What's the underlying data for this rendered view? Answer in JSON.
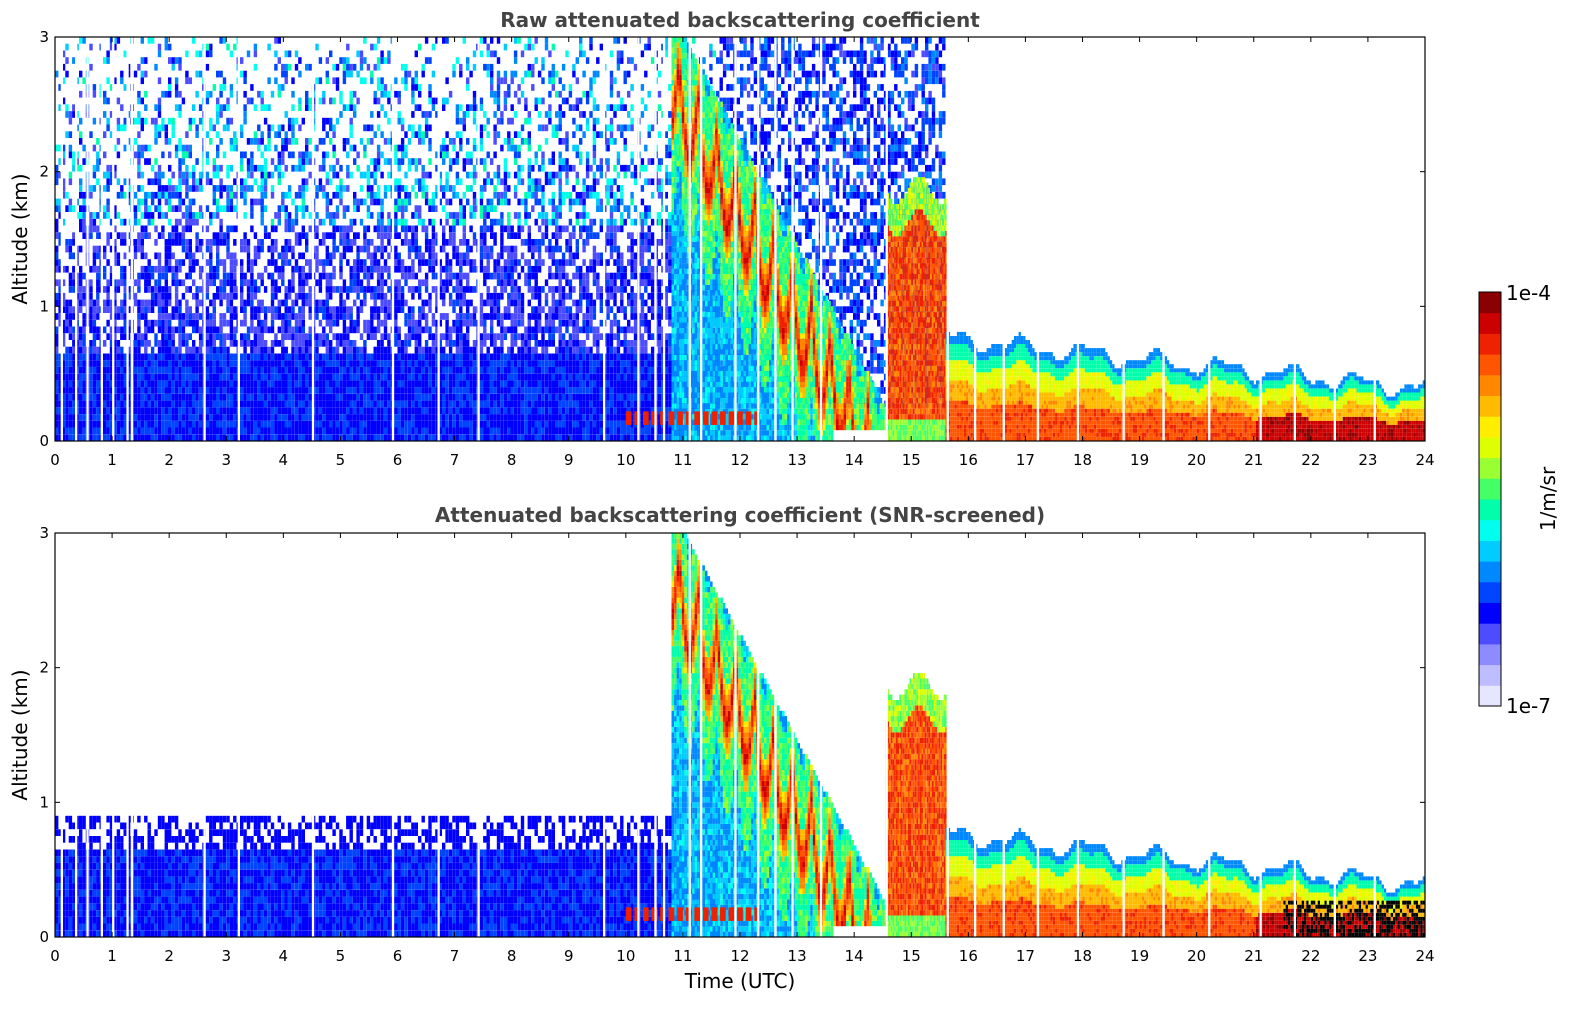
{
  "chart_data": [
    {
      "type": "heatmap",
      "title": "Raw attenuated backscattering coefficient",
      "xlabel": "",
      "ylabel": "Altitude (km)",
      "xlim": [
        0,
        24
      ],
      "ylim": [
        0,
        3
      ],
      "xticks": [
        "0",
        "1",
        "2",
        "3",
        "4",
        "5",
        "6",
        "7",
        "8",
        "9",
        "10",
        "11",
        "12",
        "13",
        "14",
        "15",
        "16",
        "17",
        "18",
        "19",
        "20",
        "21",
        "22",
        "23",
        "24"
      ],
      "yticks": [
        "0",
        "1",
        "2",
        "3"
      ],
      "colorscale": "jet-like",
      "features": [
        {
          "description": "noisy blue background aloft",
          "time_range": [
            0,
            15.6
          ],
          "altitude_range": [
            0,
            3
          ]
        },
        {
          "description": "dense blue near-surface layer",
          "time_range": [
            0,
            10
          ],
          "altitude_range": [
            0,
            0.65
          ]
        },
        {
          "description": "descending green-yellow-red streaks",
          "time_range": [
            10.8,
            14.6
          ],
          "altitude_range": [
            0,
            3
          ]
        },
        {
          "description": "red/orange cloud core",
          "time_range": [
            14.6,
            15.6
          ],
          "altitude_range": [
            0,
            1.9
          ]
        },
        {
          "description": "boundary layer orange-red with top descending",
          "time_range": [
            15.6,
            24
          ],
          "altitude_range": [
            0,
            0.75
          ]
        }
      ]
    },
    {
      "type": "heatmap",
      "title": "Attenuated backscattering coefficient (SNR-screened)",
      "xlabel": "Time (UTC)",
      "ylabel": "Altitude (km)",
      "xlim": [
        0,
        24
      ],
      "ylim": [
        0,
        3
      ],
      "xticks": [
        "0",
        "1",
        "2",
        "3",
        "4",
        "5",
        "6",
        "7",
        "8",
        "9",
        "10",
        "11",
        "12",
        "13",
        "14",
        "15",
        "16",
        "17",
        "18",
        "19",
        "20",
        "21",
        "22",
        "23",
        "24"
      ],
      "yticks": [
        "0",
        "1",
        "2",
        "3"
      ],
      "colorscale": "jet-like",
      "features": [
        {
          "description": "screened blue low layer",
          "time_range": [
            0,
            11.6
          ],
          "altitude_range": [
            0,
            0.9
          ]
        },
        {
          "description": "descending streaks",
          "time_range": [
            10.8,
            14.6
          ],
          "altitude_range": [
            0,
            3
          ]
        },
        {
          "description": "red/orange cloud core",
          "time_range": [
            14.6,
            15.6
          ],
          "altitude_range": [
            0,
            1.9
          ]
        },
        {
          "description": "boundary layer",
          "time_range": [
            15.6,
            24
          ],
          "altitude_range": [
            0,
            0.75
          ]
        },
        {
          "description": "black saturated pixels near surface",
          "time_range": [
            21.5,
            24
          ],
          "altitude_range": [
            0,
            0.25
          ]
        }
      ]
    }
  ],
  "colorbar": {
    "label": "1/m/sr",
    "max_label": "1e-4",
    "min_label": "1e-7",
    "colors": [
      "#e6e6ff",
      "#bdbdff",
      "#8c8cff",
      "#4d4dff",
      "#0000ff",
      "#0044ff",
      "#0088ff",
      "#00ccff",
      "#00ffee",
      "#00ffaa",
      "#44ff66",
      "#99ff33",
      "#ddff00",
      "#ffee00",
      "#ffbb00",
      "#ff8800",
      "#ff5500",
      "#ee2200",
      "#cc0000",
      "#8b0000"
    ]
  }
}
